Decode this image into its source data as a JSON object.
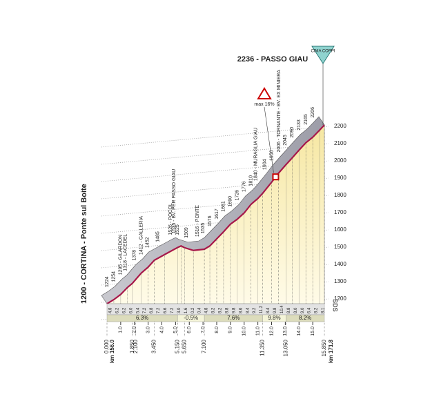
{
  "chart_data": {
    "type": "profile",
    "title": "2236 - PASSO GIAU",
    "summit_badge": "CIMA COPPI",
    "max_note": "max 16%",
    "start_km": "km 156.0",
    "end_km": "km 171.8",
    "logo": "SDS",
    "color": "#a8174a",
    "x": [
      0,
      0.5,
      1.0,
      1.5,
      1.85,
      2.5,
      3.0,
      3.45,
      4.2,
      5.15,
      5.4,
      5.65,
      6.3,
      7.1,
      7.5,
      8.0,
      8.5,
      9.0,
      9.5,
      10.0,
      10.5,
      11.0,
      11.35,
      12.0,
      12.5,
      13.05,
      13.5,
      14.0,
      14.5,
      15.0,
      15.5,
      15.85
    ],
    "values": [
      1200,
      1224,
      1254,
      1295,
      1318,
      1378,
      1412,
      1452,
      1485,
      1526,
      1535,
      1525,
      1509,
      1516,
      1535,
      1576,
      1617,
      1661,
      1690,
      1726,
      1776,
      1810,
      1840,
      1904,
      1956,
      2006,
      2045,
      2090,
      2133,
      2165,
      2206,
      2236
    ],
    "value_labels": [
      "1200 - CORTINA - Ponte sul Boite",
      "1224",
      "1254",
      "1295 - GILARDON",
      "1318 - LACEDEL",
      "1378",
      "1412 - GALLERIA",
      "1452",
      "1485",
      "1526 - POCOL",
      "1535 - BV. PER PASSO GIAU",
      "1525",
      "1509",
      "1516 - PONTE",
      "1535",
      "1576",
      "1617",
      "1661",
      "1690",
      "1726",
      "1776",
      "1810",
      "1840 - MURAGLIA GIAU",
      "1904",
      "1956",
      "2006 - TORNANTE - BV. EX MINIERA",
      "2045",
      "2090",
      "2133",
      "2165",
      "2206",
      "2236 - PASSO GIAU"
    ],
    "max_km": 12.3,
    "xlim": [
      0,
      15.85
    ],
    "ylim": [
      1200,
      2236
    ],
    "yticks": [
      1200,
      1300,
      1400,
      1500,
      1600,
      1700,
      1800,
      1900,
      2000,
      2100,
      2200
    ],
    "xticks": [
      {
        "value": 0,
        "label": "0.000"
      },
      {
        "value": 1.85,
        "label": "1.850"
      },
      {
        "value": 2.1,
        "label": "2.100"
      },
      {
        "value": 3.45,
        "label": "3.450"
      },
      {
        "value": 5.15,
        "label": "5.150"
      },
      {
        "value": 5.65,
        "label": "5.650"
      },
      {
        "value": 7.1,
        "label": "7.100"
      },
      {
        "value": 11.35,
        "label": "11.350"
      },
      {
        "value": 13.05,
        "label": "13.050"
      },
      {
        "value": 15.85,
        "label": "15.850"
      }
    ],
    "km_ticks": [
      {
        "value": 1,
        "label": "1.0"
      },
      {
        "value": 2,
        "label": "2.0"
      },
      {
        "value": 3,
        "label": "3.0"
      },
      {
        "value": 4,
        "label": "4.0"
      },
      {
        "value": 5,
        "label": "5.0"
      },
      {
        "value": 6,
        "label": "6.0"
      },
      {
        "value": 7,
        "label": "7.0"
      },
      {
        "value": 8,
        "label": "8.0"
      },
      {
        "value": 9,
        "label": "9.0"
      },
      {
        "value": 10,
        "label": "10.0"
      },
      {
        "value": 11,
        "label": "11.0"
      },
      {
        "value": 12,
        "label": "12.0"
      },
      {
        "value": 13,
        "label": "13.0"
      },
      {
        "value": 14,
        "label": "14.0"
      },
      {
        "value": 15,
        "label": "15.0"
      }
    ],
    "grades": {
      "values": [
        4.8,
        6.2,
        6.2,
        6.0,
        5.4,
        7.2,
        6.8,
        7.2,
        6.6,
        7.2,
        3.0,
        1.6,
        0.2,
        0.4,
        4.8,
        8.2,
        8.2,
        8.8,
        9.8,
        8.6,
        8.4,
        9.2,
        11.2,
        8.4,
        9.8,
        10.4,
        8.8,
        8.0,
        9.0,
        6.4,
        8.2,
        8.1
      ],
      "value_labels": [
        "4.8",
        "6.2",
        "6.2",
        "6.0",
        "5.4",
        "7.2",
        "6.8",
        "7.2",
        "6.6",
        "7.2",
        "3.0",
        "1.6",
        "0.2",
        "0.4",
        "4.8",
        "8.2",
        "8.2",
        "8.8",
        "9.8",
        "8.6",
        "8.4",
        "9.2",
        "11.2",
        "8.4",
        "9.8",
        "10.4",
        "8.8",
        "8.0",
        "9.0",
        "6.4",
        "8.2",
        "8.1"
      ]
    },
    "averages": [
      {
        "from": 0,
        "to": 5.15,
        "value": 6.3,
        "label": "6.3%"
      },
      {
        "from": 5.15,
        "to": 7.1,
        "value": -0.5,
        "label": "-0.5%"
      },
      {
        "from": 7.1,
        "to": 11.35,
        "value": 7.6,
        "label": "7.6%"
      },
      {
        "from": 11.35,
        "to": 13.05,
        "value": 9.8,
        "label": "9.8%"
      },
      {
        "from": 13.05,
        "to": 15.85,
        "value": 8.2,
        "label": "8.2%"
      }
    ]
  }
}
